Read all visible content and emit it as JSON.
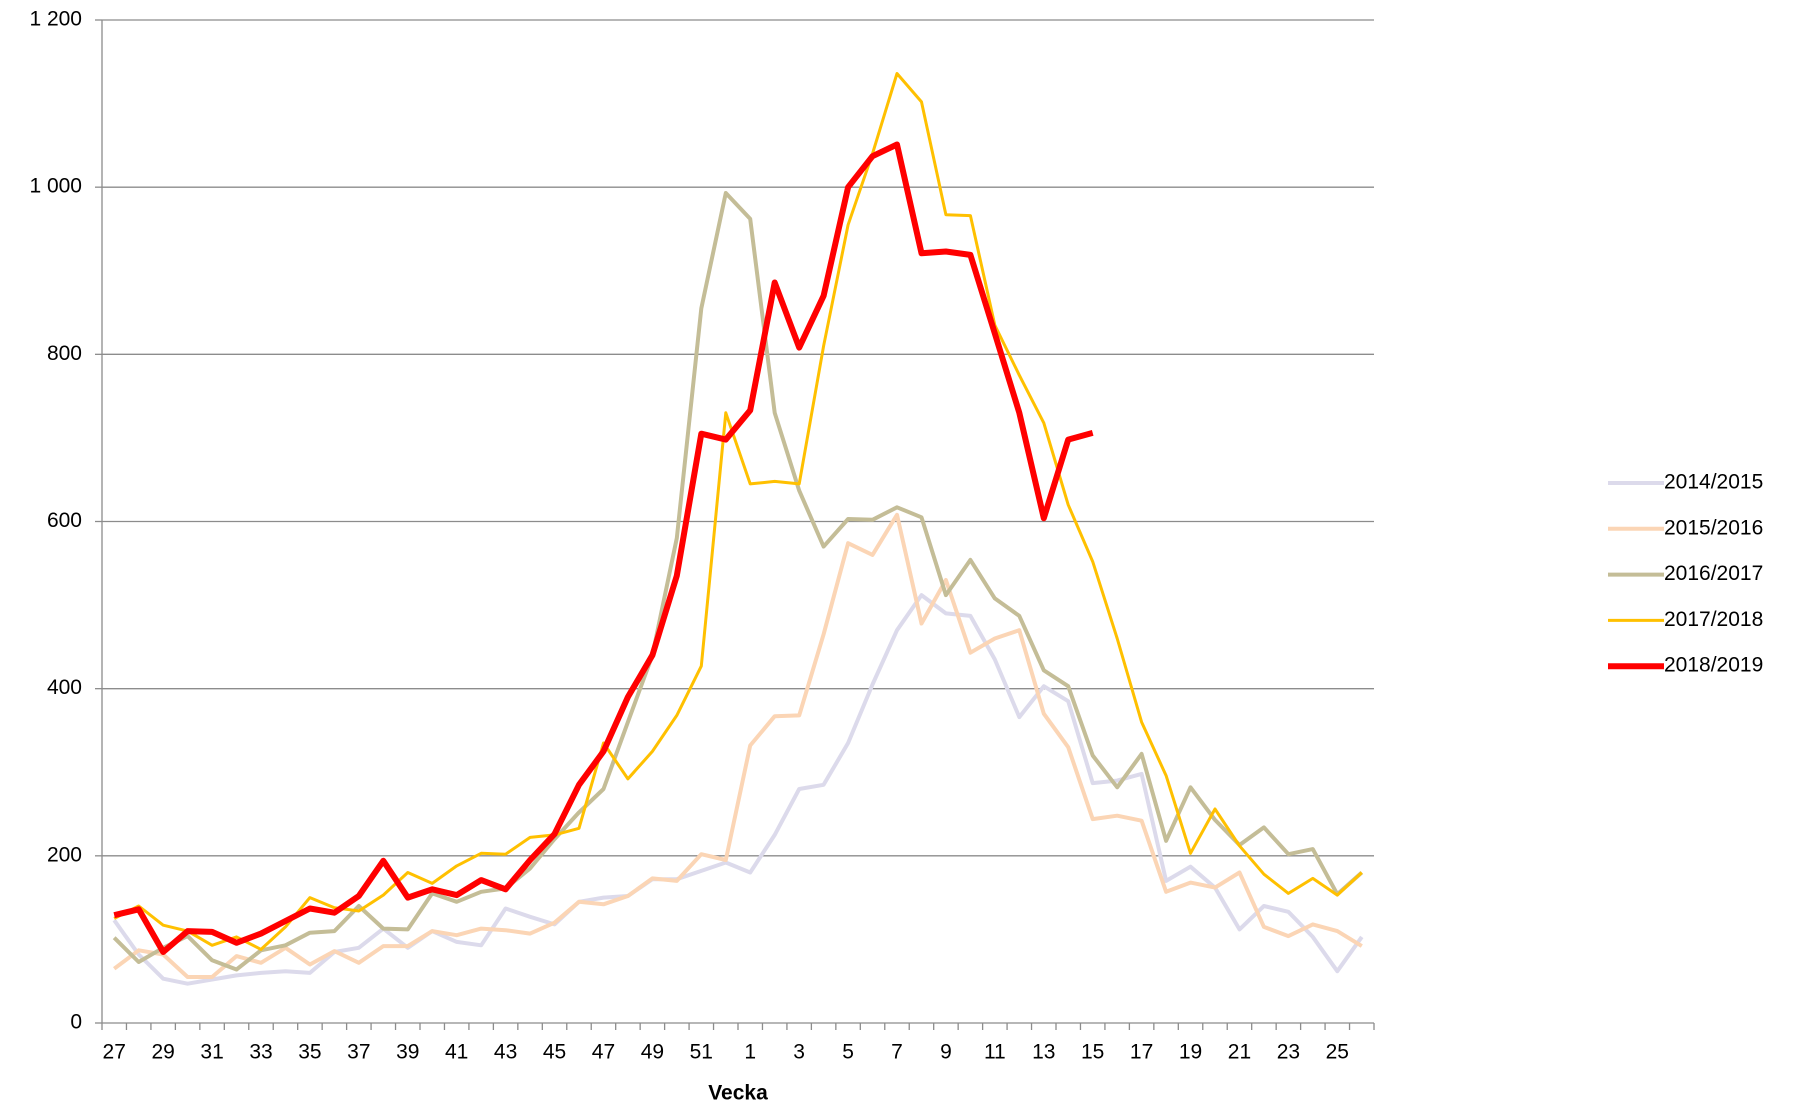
{
  "chart_data": {
    "type": "line",
    "x_label": "Vecka",
    "categories": [
      "27",
      null,
      "29",
      null,
      "31",
      null,
      "33",
      null,
      "35",
      null,
      "37",
      null,
      "39",
      null,
      "41",
      null,
      "43",
      null,
      "45",
      null,
      "47",
      null,
      "49",
      null,
      "51",
      null,
      "1",
      null,
      "3",
      null,
      "5",
      null,
      "7",
      null,
      "9",
      null,
      "11",
      null,
      "13",
      null,
      "15",
      null,
      "17",
      null,
      "19",
      null,
      "21",
      null,
      "23",
      null,
      "25",
      null
    ],
    "ylim": [
      0,
      1200
    ],
    "yticks": [
      0,
      200,
      400,
      600,
      800,
      {
        "value": 1000,
        "label": "1 000"
      },
      {
        "value": 1200,
        "label": "1 200"
      }
    ],
    "grid": true,
    "legend": "right",
    "series": [
      {
        "name": "2014/2015",
        "color": "#dcdaeb",
        "width": 4,
        "values": [
          123,
          82,
          53,
          47,
          52,
          57,
          60,
          62,
          60,
          85,
          90,
          113,
          90,
          110,
          97,
          93,
          137,
          127,
          118,
          145,
          150,
          152,
          172,
          172,
          182,
          192,
          180,
          225,
          280,
          285,
          335,
          405,
          470,
          512,
          490,
          487,
          435,
          366,
          403,
          385,
          287,
          290,
          298,
          170,
          187,
          162,
          112,
          140,
          133,
          103,
          62,
          103
        ]
      },
      {
        "name": "2015/2016",
        "color": "#fbd5b5",
        "width": 4,
        "values": [
          65,
          87,
          82,
          55,
          55,
          80,
          72,
          90,
          70,
          86,
          72,
          92,
          92,
          110,
          105,
          113,
          111,
          107,
          120,
          145,
          142,
          152,
          173,
          170,
          202,
          195,
          332,
          367,
          368,
          465,
          574,
          560,
          608,
          478,
          530,
          443,
          460,
          470,
          370,
          330,
          244,
          248,
          242,
          157,
          168,
          162,
          180,
          115,
          104,
          118,
          110,
          92
        ]
      },
      {
        "name": "2016/2017",
        "color": "#c4bd97",
        "width": 4,
        "values": [
          102,
          73,
          90,
          104,
          75,
          64,
          87,
          93,
          108,
          110,
          140,
          113,
          112,
          155,
          145,
          157,
          161,
          185,
          220,
          252,
          280,
          360,
          440,
          580,
          855,
          993,
          962,
          730,
          637,
          570,
          603,
          602,
          617,
          605,
          512,
          554,
          508,
          487,
          422,
          403,
          320,
          282,
          322,
          218,
          282,
          243,
          213,
          234,
          202,
          208,
          154,
          180
        ]
      },
      {
        "name": "2017/2018",
        "color": "#ffc000",
        "width": 3,
        "values": [
          125,
          140,
          117,
          110,
          93,
          103,
          88,
          115,
          150,
          138,
          134,
          153,
          180,
          167,
          188,
          203,
          202,
          222,
          225,
          233,
          335,
          292,
          325,
          368,
          427,
          730,
          645,
          648,
          645,
          810,
          955,
          1040,
          1136,
          1102,
          967,
          966,
          835,
          775,
          718,
          620,
          552,
          460,
          360,
          296,
          203,
          256,
          212,
          178,
          155,
          173,
          153,
          180
        ]
      },
      {
        "name": "2018/2019",
        "color": "#ff0000",
        "width": 6,
        "values": [
          129,
          136,
          85,
          110,
          109,
          96,
          107,
          122,
          137,
          132,
          152,
          194,
          150,
          160,
          153,
          171,
          160,
          195,
          226,
          285,
          325,
          390,
          440,
          535,
          705,
          698,
          733,
          886,
          808,
          870,
          1000,
          1037,
          1051,
          921,
          923,
          919,
          825,
          730,
          604,
          698,
          706,
          null,
          null,
          null,
          null,
          null,
          null,
          null,
          null,
          null,
          null,
          null
        ]
      }
    ]
  }
}
